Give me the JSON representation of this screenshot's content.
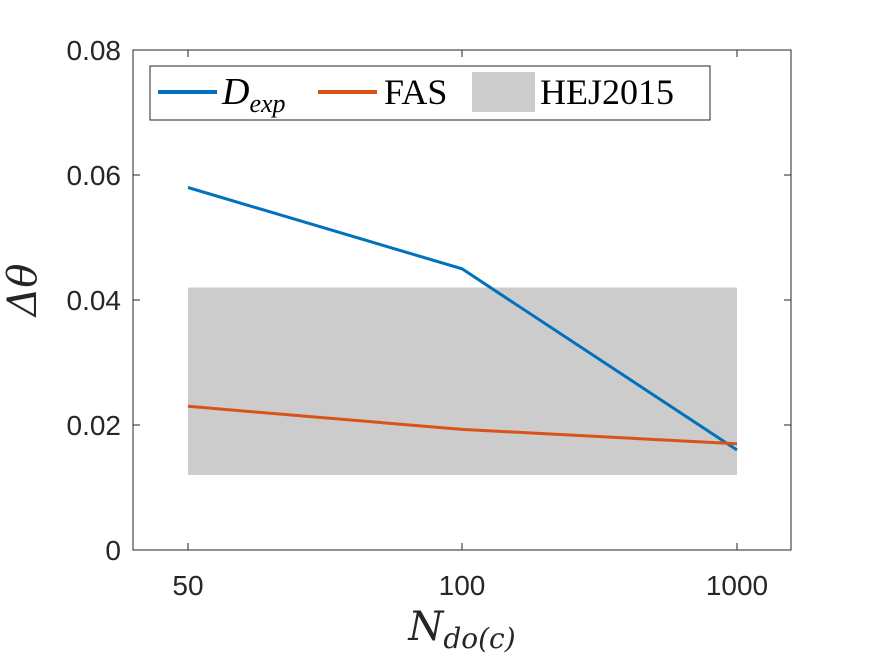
{
  "chart_data": {
    "type": "line",
    "categories": [
      "50",
      "100",
      "1000"
    ],
    "series": [
      {
        "name": "D_exp",
        "values": [
          0.058,
          0.045,
          0.016
        ],
        "color": "#0072BD"
      },
      {
        "name": "FAS",
        "values": [
          0.023,
          0.0193,
          0.017
        ],
        "color": "#D95319"
      }
    ],
    "band": {
      "name": "HEJ2015",
      "ymin": 0.012,
      "ymax": 0.042,
      "color": "#cccccc"
    },
    "ylim": [
      0,
      0.08
    ],
    "yticks": [
      "0",
      "0.02",
      "0.04",
      "0.06",
      "0.08"
    ],
    "xlabel": {
      "main": "N",
      "sub": "do(c)"
    },
    "ylabel": "Δθ",
    "legend": {
      "placement": "top-left",
      "dexp": {
        "main": "D",
        "sub": "exp"
      },
      "fas": "FAS",
      "hej": "HEJ2015"
    },
    "grid": false
  }
}
